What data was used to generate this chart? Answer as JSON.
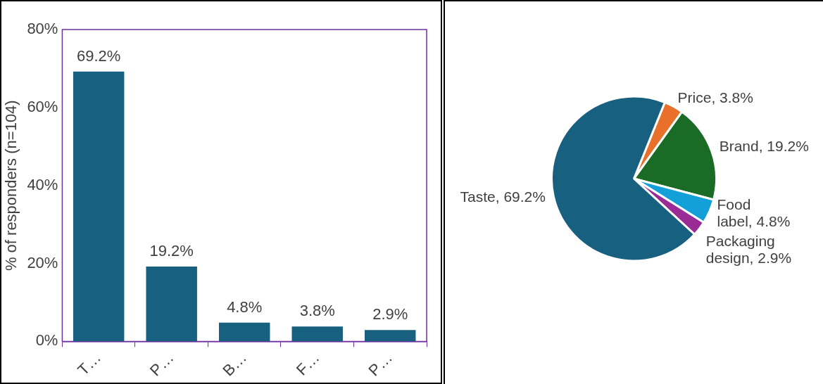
{
  "chart_data": [
    {
      "type": "bar",
      "ylabel": "% of responders (n=104)",
      "categories": [
        "T…",
        "P…",
        "B…",
        "F…",
        "P…"
      ],
      "values": [
        69.2,
        19.2,
        4.8,
        3.8,
        2.9
      ],
      "color": "#17607f",
      "value_labels": [
        "69.2%",
        "19.2%",
        "4.8%",
        "3.8%",
        "2.9%"
      ],
      "ylim": [
        0,
        80
      ],
      "yticks": [
        {
          "value": 0,
          "label": "0%"
        },
        {
          "value": 20,
          "label": "20%"
        },
        {
          "value": 40,
          "label": "40%"
        },
        {
          "value": 60,
          "label": "60%"
        },
        {
          "value": 80,
          "label": "80%"
        }
      ]
    },
    {
      "type": "pie",
      "categories": [
        "Price",
        "Brand",
        "Food label",
        "Packaging design",
        "Taste"
      ],
      "values": [
        3.8,
        19.2,
        4.8,
        2.9,
        69.2
      ],
      "colors": [
        "#e8702a",
        "#1a6b25",
        "#13a0d8",
        "#9b2b94",
        "#17607f"
      ],
      "value_labels": [
        "3.8%",
        "19.2%",
        "4.8%",
        "2.9%",
        "69.2%"
      ]
    }
  ]
}
